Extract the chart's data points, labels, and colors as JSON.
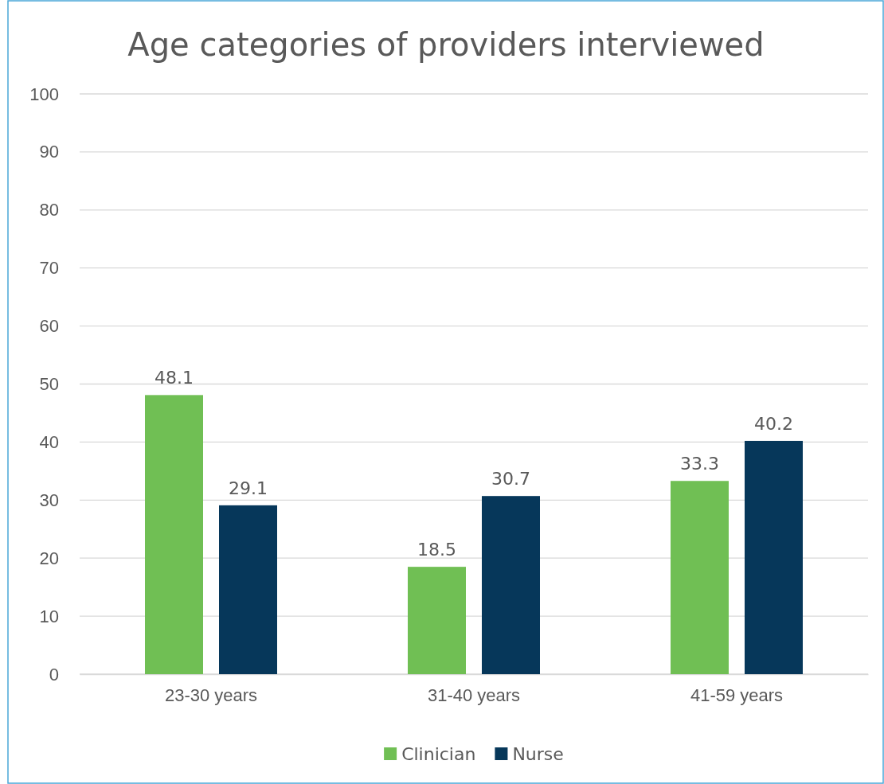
{
  "chart_data": {
    "type": "bar",
    "title": "Age categories of providers interviewed",
    "categories": [
      "23-30 years",
      "31-40 years",
      "41-59 years"
    ],
    "series": [
      {
        "name": "Clinician",
        "color": "#70bf54",
        "values": [
          48.1,
          18.5,
          33.3
        ]
      },
      {
        "name": "Nurse",
        "color": "#06375a",
        "values": [
          29.1,
          30.7,
          40.2
        ]
      }
    ],
    "ylim": [
      0,
      100
    ],
    "yticks": [
      0,
      10,
      20,
      30,
      40,
      50,
      60,
      70,
      80,
      90,
      100
    ],
    "grid": "y",
    "legend": "bottom",
    "data_labels": true
  }
}
